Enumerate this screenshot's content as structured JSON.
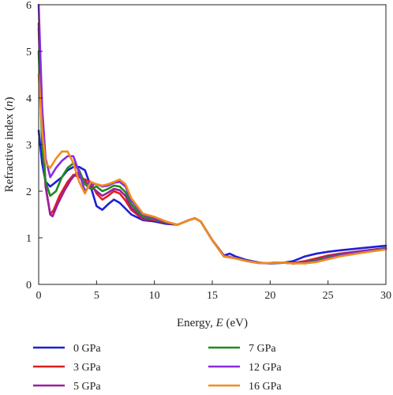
{
  "chart_data": {
    "type": "line",
    "title": "",
    "xlabel": "Energy, E (eV)",
    "ylabel": "Refractive index (n)",
    "xlim": [
      0,
      30
    ],
    "ylim": [
      0,
      6
    ],
    "xticks": [
      0,
      5,
      10,
      15,
      20,
      25,
      30
    ],
    "yticks": [
      0,
      1,
      2,
      3,
      4,
      5,
      6
    ],
    "grid": false,
    "legend_position": "below",
    "series": [
      {
        "name": "0 GPa",
        "color": "#1f1fd6",
        "x": [
          0.0,
          0.3,
          0.6,
          1.0,
          1.5,
          2.0,
          2.5,
          3.0,
          3.5,
          4.0,
          4.5,
          5.0,
          5.5,
          6.0,
          6.5,
          7.0,
          8.0,
          9.0,
          10.0,
          11.0,
          12.0,
          13.0,
          13.5,
          14.0,
          15.0,
          16.0,
          16.5,
          17.0,
          18.0,
          19.0,
          20.0,
          21.0,
          22.0,
          23.0,
          24.0,
          25.0,
          26.0,
          28.0,
          30.0
        ],
        "values": [
          3.3,
          2.6,
          2.2,
          2.1,
          2.2,
          2.3,
          2.45,
          2.52,
          2.52,
          2.45,
          2.1,
          1.68,
          1.6,
          1.72,
          1.82,
          1.75,
          1.5,
          1.38,
          1.35,
          1.3,
          1.28,
          1.38,
          1.42,
          1.35,
          0.95,
          0.62,
          0.66,
          0.6,
          0.52,
          0.47,
          0.45,
          0.46,
          0.5,
          0.6,
          0.66,
          0.7,
          0.73,
          0.78,
          0.83
        ]
      },
      {
        "name": "3 GPa",
        "color": "#e01e1e",
        "x": [
          0.0,
          0.3,
          0.6,
          1.0,
          1.3,
          1.8,
          2.5,
          3.0,
          3.5,
          4.0,
          4.5,
          5.0,
          5.5,
          6.0,
          6.5,
          7.0,
          7.5,
          8.0,
          9.0,
          10.0,
          11.0,
          12.0,
          13.0,
          13.5,
          14.0,
          15.0,
          16.0,
          17.0,
          18.0,
          19.0,
          20.0,
          21.0,
          22.0,
          23.0,
          24.0,
          25.0,
          26.0,
          28.0,
          30.0
        ],
        "values": [
          5.6,
          3.5,
          2.1,
          1.5,
          1.6,
          1.9,
          2.2,
          2.35,
          2.3,
          2.25,
          2.2,
          1.95,
          1.82,
          1.9,
          2.0,
          1.95,
          1.8,
          1.6,
          1.4,
          1.38,
          1.32,
          1.28,
          1.38,
          1.42,
          1.35,
          0.95,
          0.62,
          0.56,
          0.5,
          0.46,
          0.46,
          0.47,
          0.46,
          0.5,
          0.56,
          0.62,
          0.66,
          0.72,
          0.78
        ]
      },
      {
        "name": "5 GPa",
        "color": "#9a1f9a",
        "x": [
          0.0,
          0.3,
          0.6,
          1.0,
          1.2,
          1.6,
          2.2,
          2.8,
          3.3,
          3.8,
          4.3,
          5.0,
          5.5,
          6.0,
          6.5,
          7.0,
          7.5,
          8.0,
          9.0,
          10.0,
          11.0,
          12.0,
          13.0,
          13.5,
          14.0,
          15.0,
          16.0,
          17.0,
          18.0,
          19.0,
          20.0,
          21.0,
          22.0,
          23.0,
          24.0,
          25.0,
          26.0,
          28.0,
          30.0
        ],
        "values": [
          5.5,
          3.4,
          2.1,
          1.5,
          1.46,
          1.7,
          2.0,
          2.25,
          2.4,
          2.25,
          2.15,
          2.0,
          1.9,
          1.97,
          2.05,
          2.02,
          1.9,
          1.65,
          1.42,
          1.4,
          1.33,
          1.28,
          1.38,
          1.42,
          1.35,
          0.95,
          0.62,
          0.56,
          0.5,
          0.46,
          0.46,
          0.47,
          0.45,
          0.48,
          0.53,
          0.6,
          0.65,
          0.72,
          0.78
        ]
      },
      {
        "name": "7 GPa",
        "color": "#1f8a1f",
        "x": [
          0.0,
          0.3,
          0.6,
          1.0,
          1.5,
          2.0,
          2.5,
          3.0,
          3.5,
          4.0,
          4.5,
          5.0,
          5.5,
          6.0,
          6.5,
          7.0,
          7.5,
          8.0,
          9.0,
          10.0,
          11.0,
          12.0,
          13.0,
          13.5,
          14.0,
          15.0,
          16.0,
          17.0,
          18.0,
          19.0,
          20.0,
          21.0,
          22.0,
          23.0,
          24.0,
          25.0,
          26.0,
          28.0,
          30.0
        ],
        "values": [
          5.0,
          3.0,
          2.2,
          1.9,
          2.0,
          2.3,
          2.5,
          2.6,
          2.45,
          2.15,
          2.05,
          2.1,
          2.0,
          2.05,
          2.12,
          2.1,
          1.98,
          1.72,
          1.45,
          1.4,
          1.33,
          1.28,
          1.38,
          1.42,
          1.35,
          0.95,
          0.6,
          0.56,
          0.5,
          0.46,
          0.46,
          0.47,
          0.45,
          0.47,
          0.52,
          0.58,
          0.63,
          0.7,
          0.77
        ]
      },
      {
        "name": "12 GPa",
        "color": "#8a2be2",
        "x": [
          0.0,
          0.3,
          0.6,
          1.0,
          1.5,
          2.0,
          2.5,
          3.0,
          3.5,
          4.0,
          4.5,
          5.0,
          5.5,
          6.0,
          6.5,
          7.0,
          7.5,
          8.0,
          9.0,
          10.0,
          11.0,
          12.0,
          13.0,
          13.5,
          14.0,
          15.0,
          16.0,
          17.0,
          18.0,
          19.0,
          20.0,
          21.0,
          22.0,
          23.0,
          24.0,
          25.0,
          26.0,
          28.0,
          30.0
        ],
        "values": [
          6.0,
          3.8,
          2.7,
          2.3,
          2.5,
          2.65,
          2.75,
          2.75,
          2.4,
          2.0,
          2.15,
          2.15,
          2.1,
          2.12,
          2.18,
          2.2,
          2.1,
          1.8,
          1.5,
          1.42,
          1.34,
          1.28,
          1.38,
          1.42,
          1.35,
          0.95,
          0.6,
          0.56,
          0.5,
          0.46,
          0.46,
          0.47,
          0.45,
          0.46,
          0.5,
          0.56,
          0.62,
          0.7,
          0.76
        ]
      },
      {
        "name": "16 GPa",
        "color": "#f28c1c",
        "x": [
          0.0,
          0.3,
          0.6,
          1.0,
          1.5,
          2.0,
          2.5,
          3.0,
          3.5,
          4.0,
          4.5,
          5.0,
          5.5,
          6.0,
          6.5,
          7.0,
          7.5,
          8.0,
          9.0,
          10.0,
          11.0,
          12.0,
          13.0,
          13.5,
          14.0,
          15.0,
          16.0,
          17.0,
          18.0,
          19.0,
          20.0,
          21.0,
          22.0,
          23.0,
          24.0,
          25.0,
          26.0,
          28.0,
          30.0
        ],
        "values": [
          4.5,
          3.3,
          2.6,
          2.5,
          2.7,
          2.85,
          2.85,
          2.6,
          2.2,
          1.95,
          2.2,
          2.15,
          2.12,
          2.15,
          2.2,
          2.25,
          2.15,
          1.85,
          1.52,
          1.45,
          1.35,
          1.28,
          1.38,
          1.42,
          1.35,
          0.95,
          0.6,
          0.56,
          0.5,
          0.46,
          0.46,
          0.47,
          0.45,
          0.45,
          0.48,
          0.54,
          0.6,
          0.68,
          0.75
        ]
      }
    ]
  }
}
